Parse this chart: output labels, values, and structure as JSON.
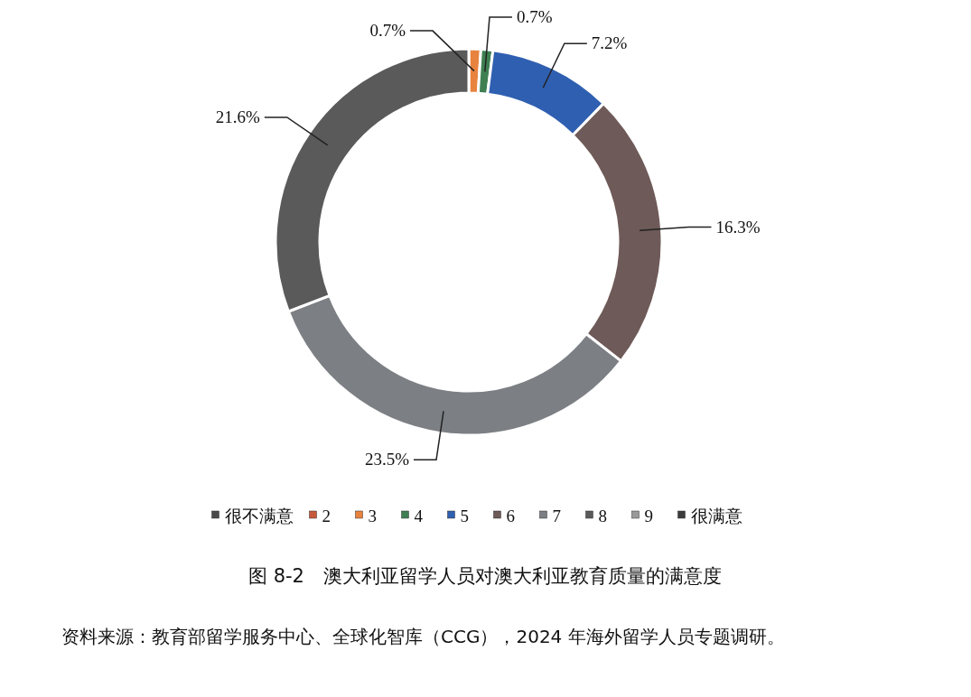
{
  "chart_data": {
    "type": "donut",
    "title": "图 8-2　澳大利亚留学人员对澳大利亚教育质量的满意度",
    "categories": [
      "很不满意",
      "2",
      "3",
      "4",
      "5",
      "6",
      "7",
      "8",
      "9",
      "很满意"
    ],
    "values": [
      null,
      null,
      0.7,
      0.7,
      7.2,
      16.3,
      23.5,
      21.6,
      null,
      null
    ],
    "value_labels": [
      null,
      null,
      "0.7%",
      "0.7%",
      "7.2%",
      "16.3%",
      "23.5%",
      "21.6%",
      null,
      null
    ],
    "colors": [
      "#4a4a4a",
      "#c8583a",
      "#e8833f",
      "#3f7f52",
      "#2f5fb0",
      "#6e5a58",
      "#7c7f83",
      "#5a5a5a",
      "#9a9a9a",
      "#3c3c3c"
    ],
    "legend": "bottom",
    "annotations": [
      "资料来源：教育部留学服务中心、全球化智库（CCG），2024 年海外留学人员专题调研。"
    ]
  }
}
